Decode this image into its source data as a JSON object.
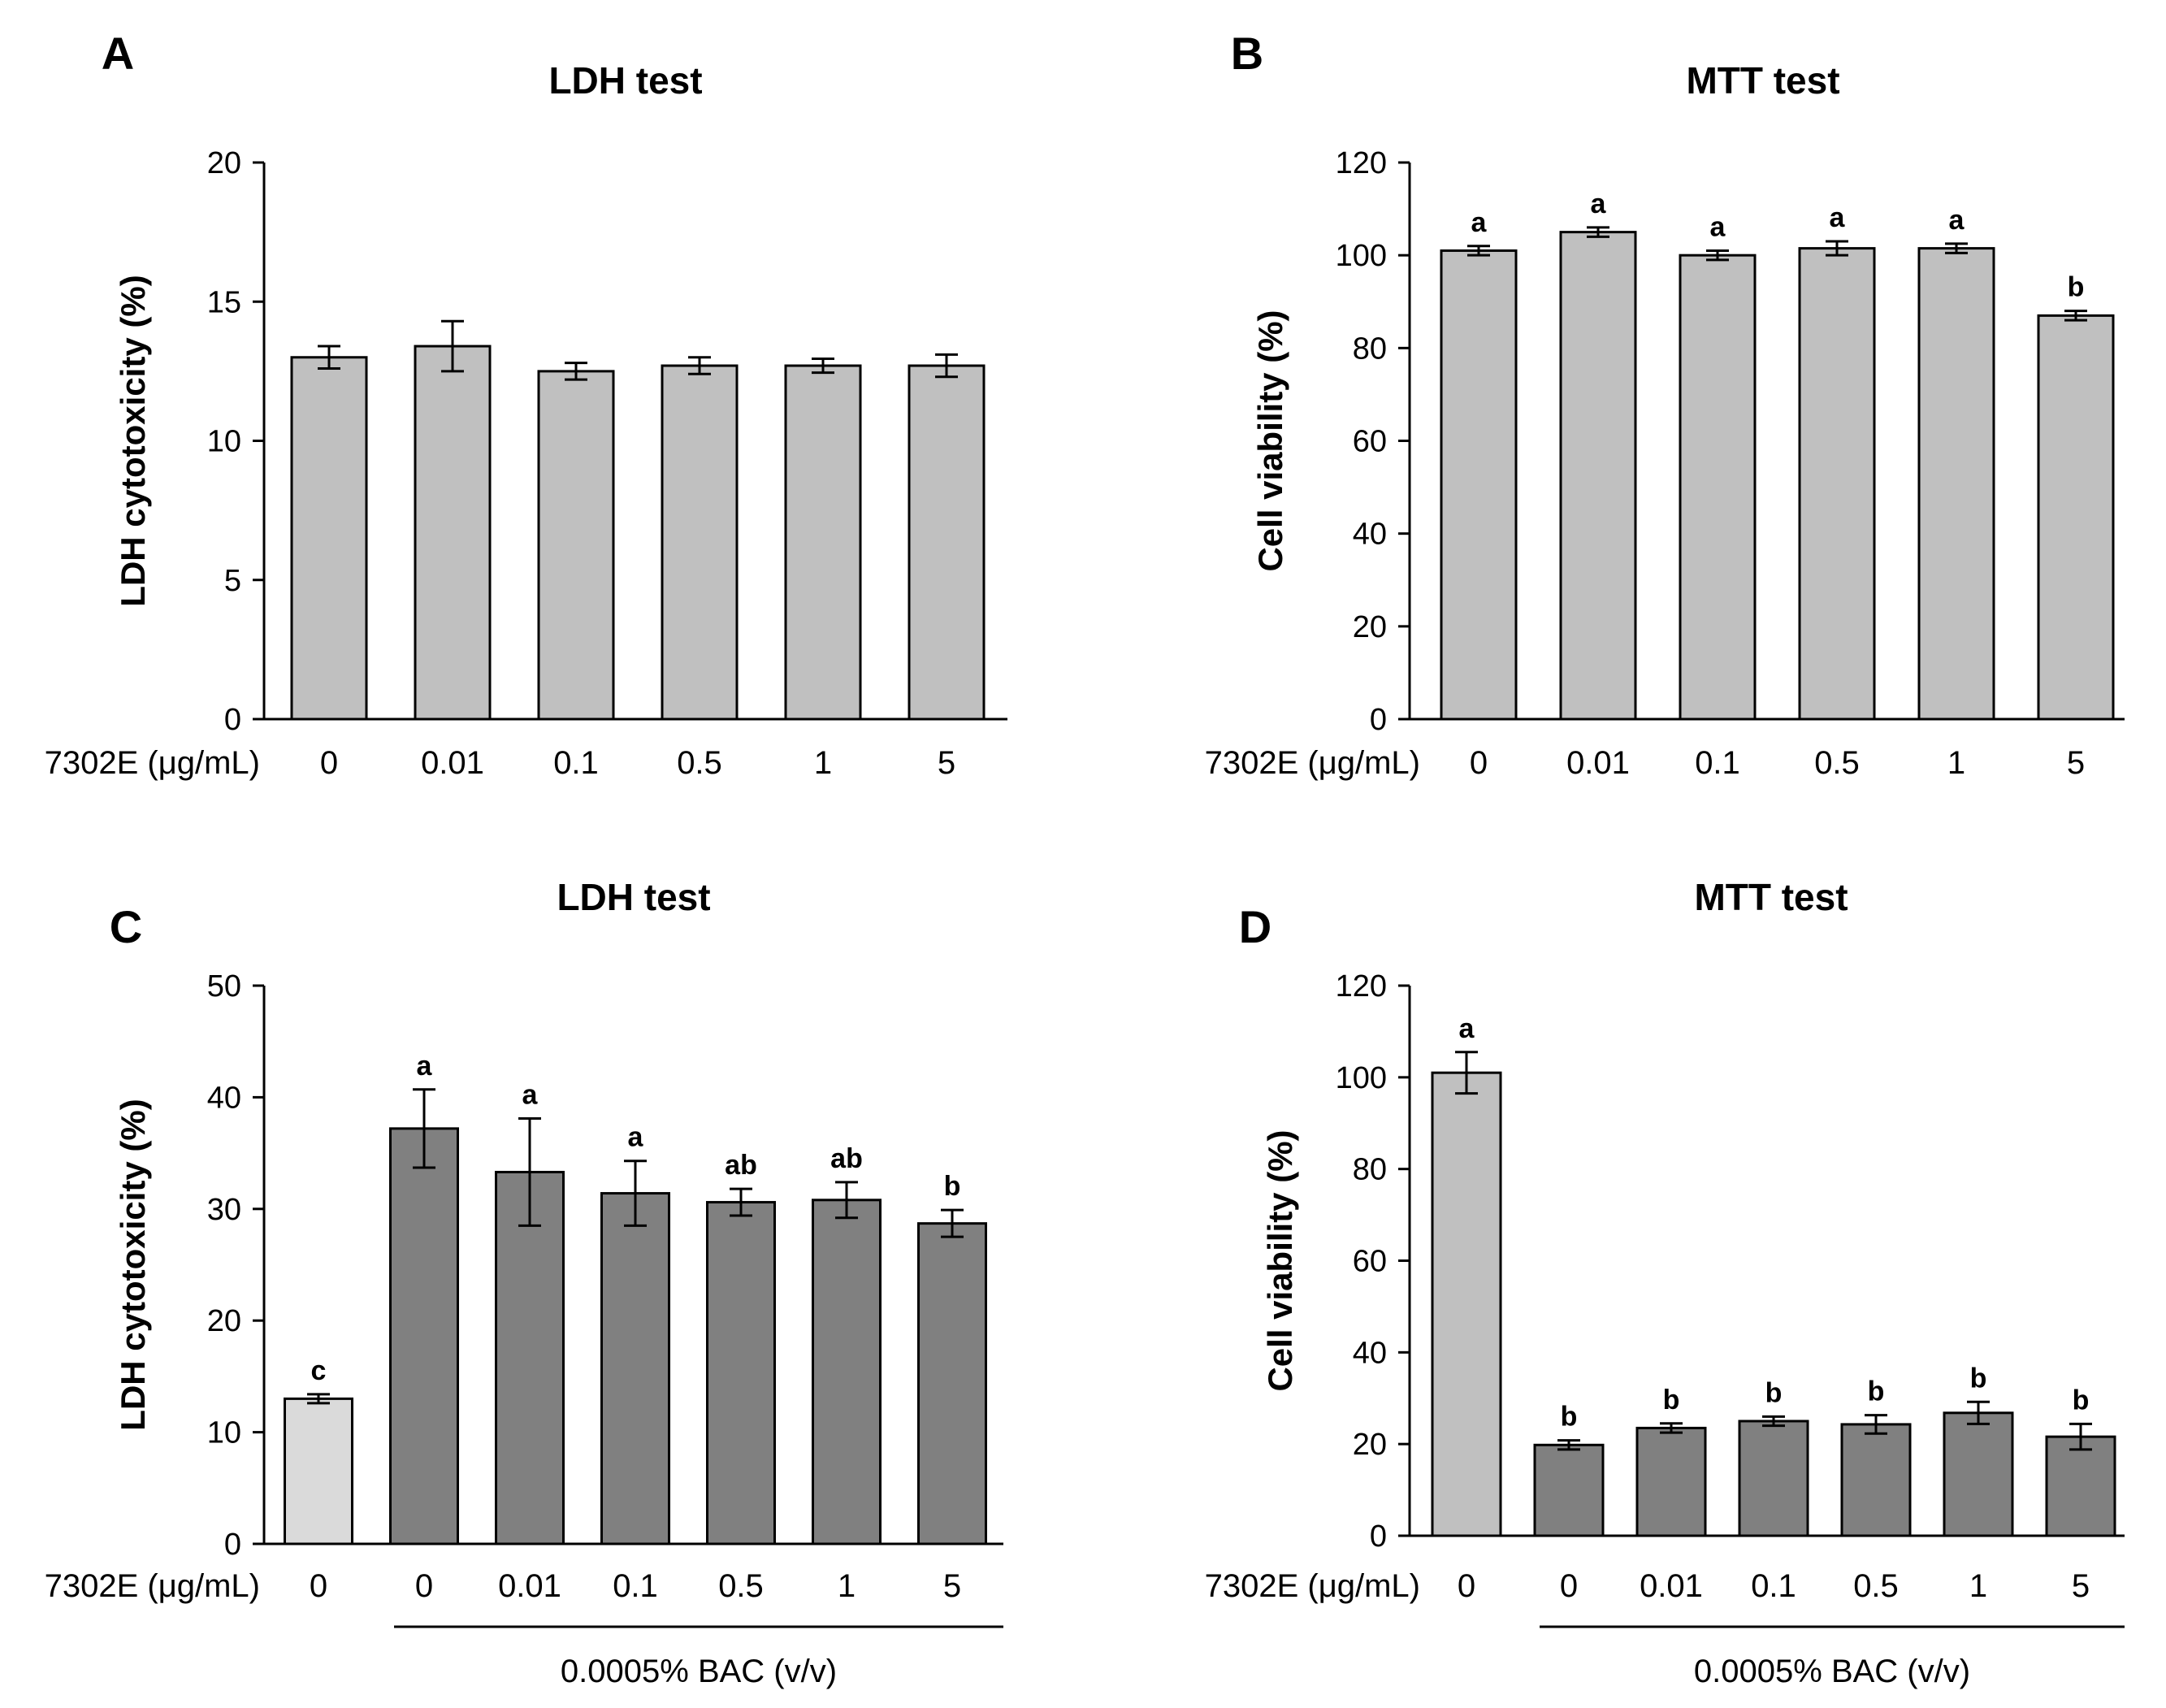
{
  "chart_data": [
    {
      "panel": "A",
      "type": "bar",
      "title": "LDH test",
      "ylabel": "LDH cytotoxicity (%)",
      "xlabel": "7302E (μg/mL)",
      "ylim": [
        0,
        20
      ],
      "yticks": [
        "0",
        "5",
        "10",
        "15",
        "20"
      ],
      "categories": [
        "0",
        "0.01",
        "0.1",
        "0.5",
        "1",
        "5"
      ],
      "values": [
        13.0,
        13.4,
        12.5,
        12.7,
        12.7,
        12.7
      ],
      "errors": [
        0.4,
        0.9,
        0.3,
        0.3,
        0.25,
        0.4
      ],
      "labels": [
        "",
        "",
        "",
        "",
        "",
        ""
      ],
      "colors": [
        "#c0c0c0",
        "#c0c0c0",
        "#c0c0c0",
        "#c0c0c0",
        "#c0c0c0",
        "#c0c0c0"
      ],
      "group_label": ""
    },
    {
      "panel": "B",
      "type": "bar",
      "title": "MTT test",
      "ylabel": "Cell viability (%)",
      "xlabel": "7302E (μg/mL)",
      "ylim": [
        0,
        120
      ],
      "yticks": [
        "0",
        "20",
        "40",
        "60",
        "80",
        "100",
        "120"
      ],
      "categories": [
        "0",
        "0.01",
        "0.1",
        "0.5",
        "1",
        "5"
      ],
      "values": [
        101,
        105,
        100,
        101.5,
        101.5,
        87
      ],
      "errors": [
        1,
        1,
        1,
        1.5,
        1,
        1
      ],
      "labels": [
        "a",
        "a",
        "a",
        "a",
        "a",
        "b"
      ],
      "colors": [
        "#c0c0c0",
        "#c0c0c0",
        "#c0c0c0",
        "#c0c0c0",
        "#c0c0c0",
        "#c0c0c0"
      ],
      "group_label": ""
    },
    {
      "panel": "C",
      "type": "bar",
      "title": "LDH test",
      "ylabel": "LDH cytotoxicity (%)",
      "xlabel": "7302E (μg/mL)",
      "ylim": [
        0,
        50
      ],
      "yticks": [
        "0",
        "10",
        "20",
        "30",
        "40",
        "50"
      ],
      "categories": [
        "0",
        "0",
        "0.01",
        "0.1",
        "0.5",
        "1",
        "5"
      ],
      "values": [
        13.0,
        37.2,
        33.3,
        31.4,
        30.6,
        30.8,
        28.7
      ],
      "errors": [
        0.4,
        3.5,
        4.8,
        2.9,
        1.2,
        1.6,
        1.2
      ],
      "labels": [
        "c",
        "a",
        "a",
        "a",
        "ab",
        "ab",
        "b"
      ],
      "colors": [
        "#dadada",
        "#808080",
        "#808080",
        "#808080",
        "#808080",
        "#808080",
        "#808080"
      ],
      "group_label": "0.0005% BAC (v/v)"
    },
    {
      "panel": "D",
      "type": "bar",
      "title": "MTT test",
      "ylabel": "Cell viability (%)",
      "xlabel": "7302E (μg/mL)",
      "ylim": [
        0,
        120
      ],
      "yticks": [
        "0",
        "20",
        "40",
        "60",
        "80",
        "100",
        "120"
      ],
      "categories": [
        "0",
        "0",
        "0.01",
        "0.1",
        "0.5",
        "1",
        "5"
      ],
      "values": [
        101,
        19.8,
        23.5,
        25.0,
        24.3,
        26.8,
        21.6
      ],
      "errors": [
        4.5,
        1,
        1,
        1,
        2,
        2.4,
        2.8
      ],
      "labels": [
        "a",
        "b",
        "b",
        "b",
        "b",
        "b",
        "b"
      ],
      "colors": [
        "#c0c0c0",
        "#808080",
        "#808080",
        "#808080",
        "#808080",
        "#808080",
        "#808080"
      ],
      "group_label": "0.0005% BAC (v/v)"
    }
  ]
}
